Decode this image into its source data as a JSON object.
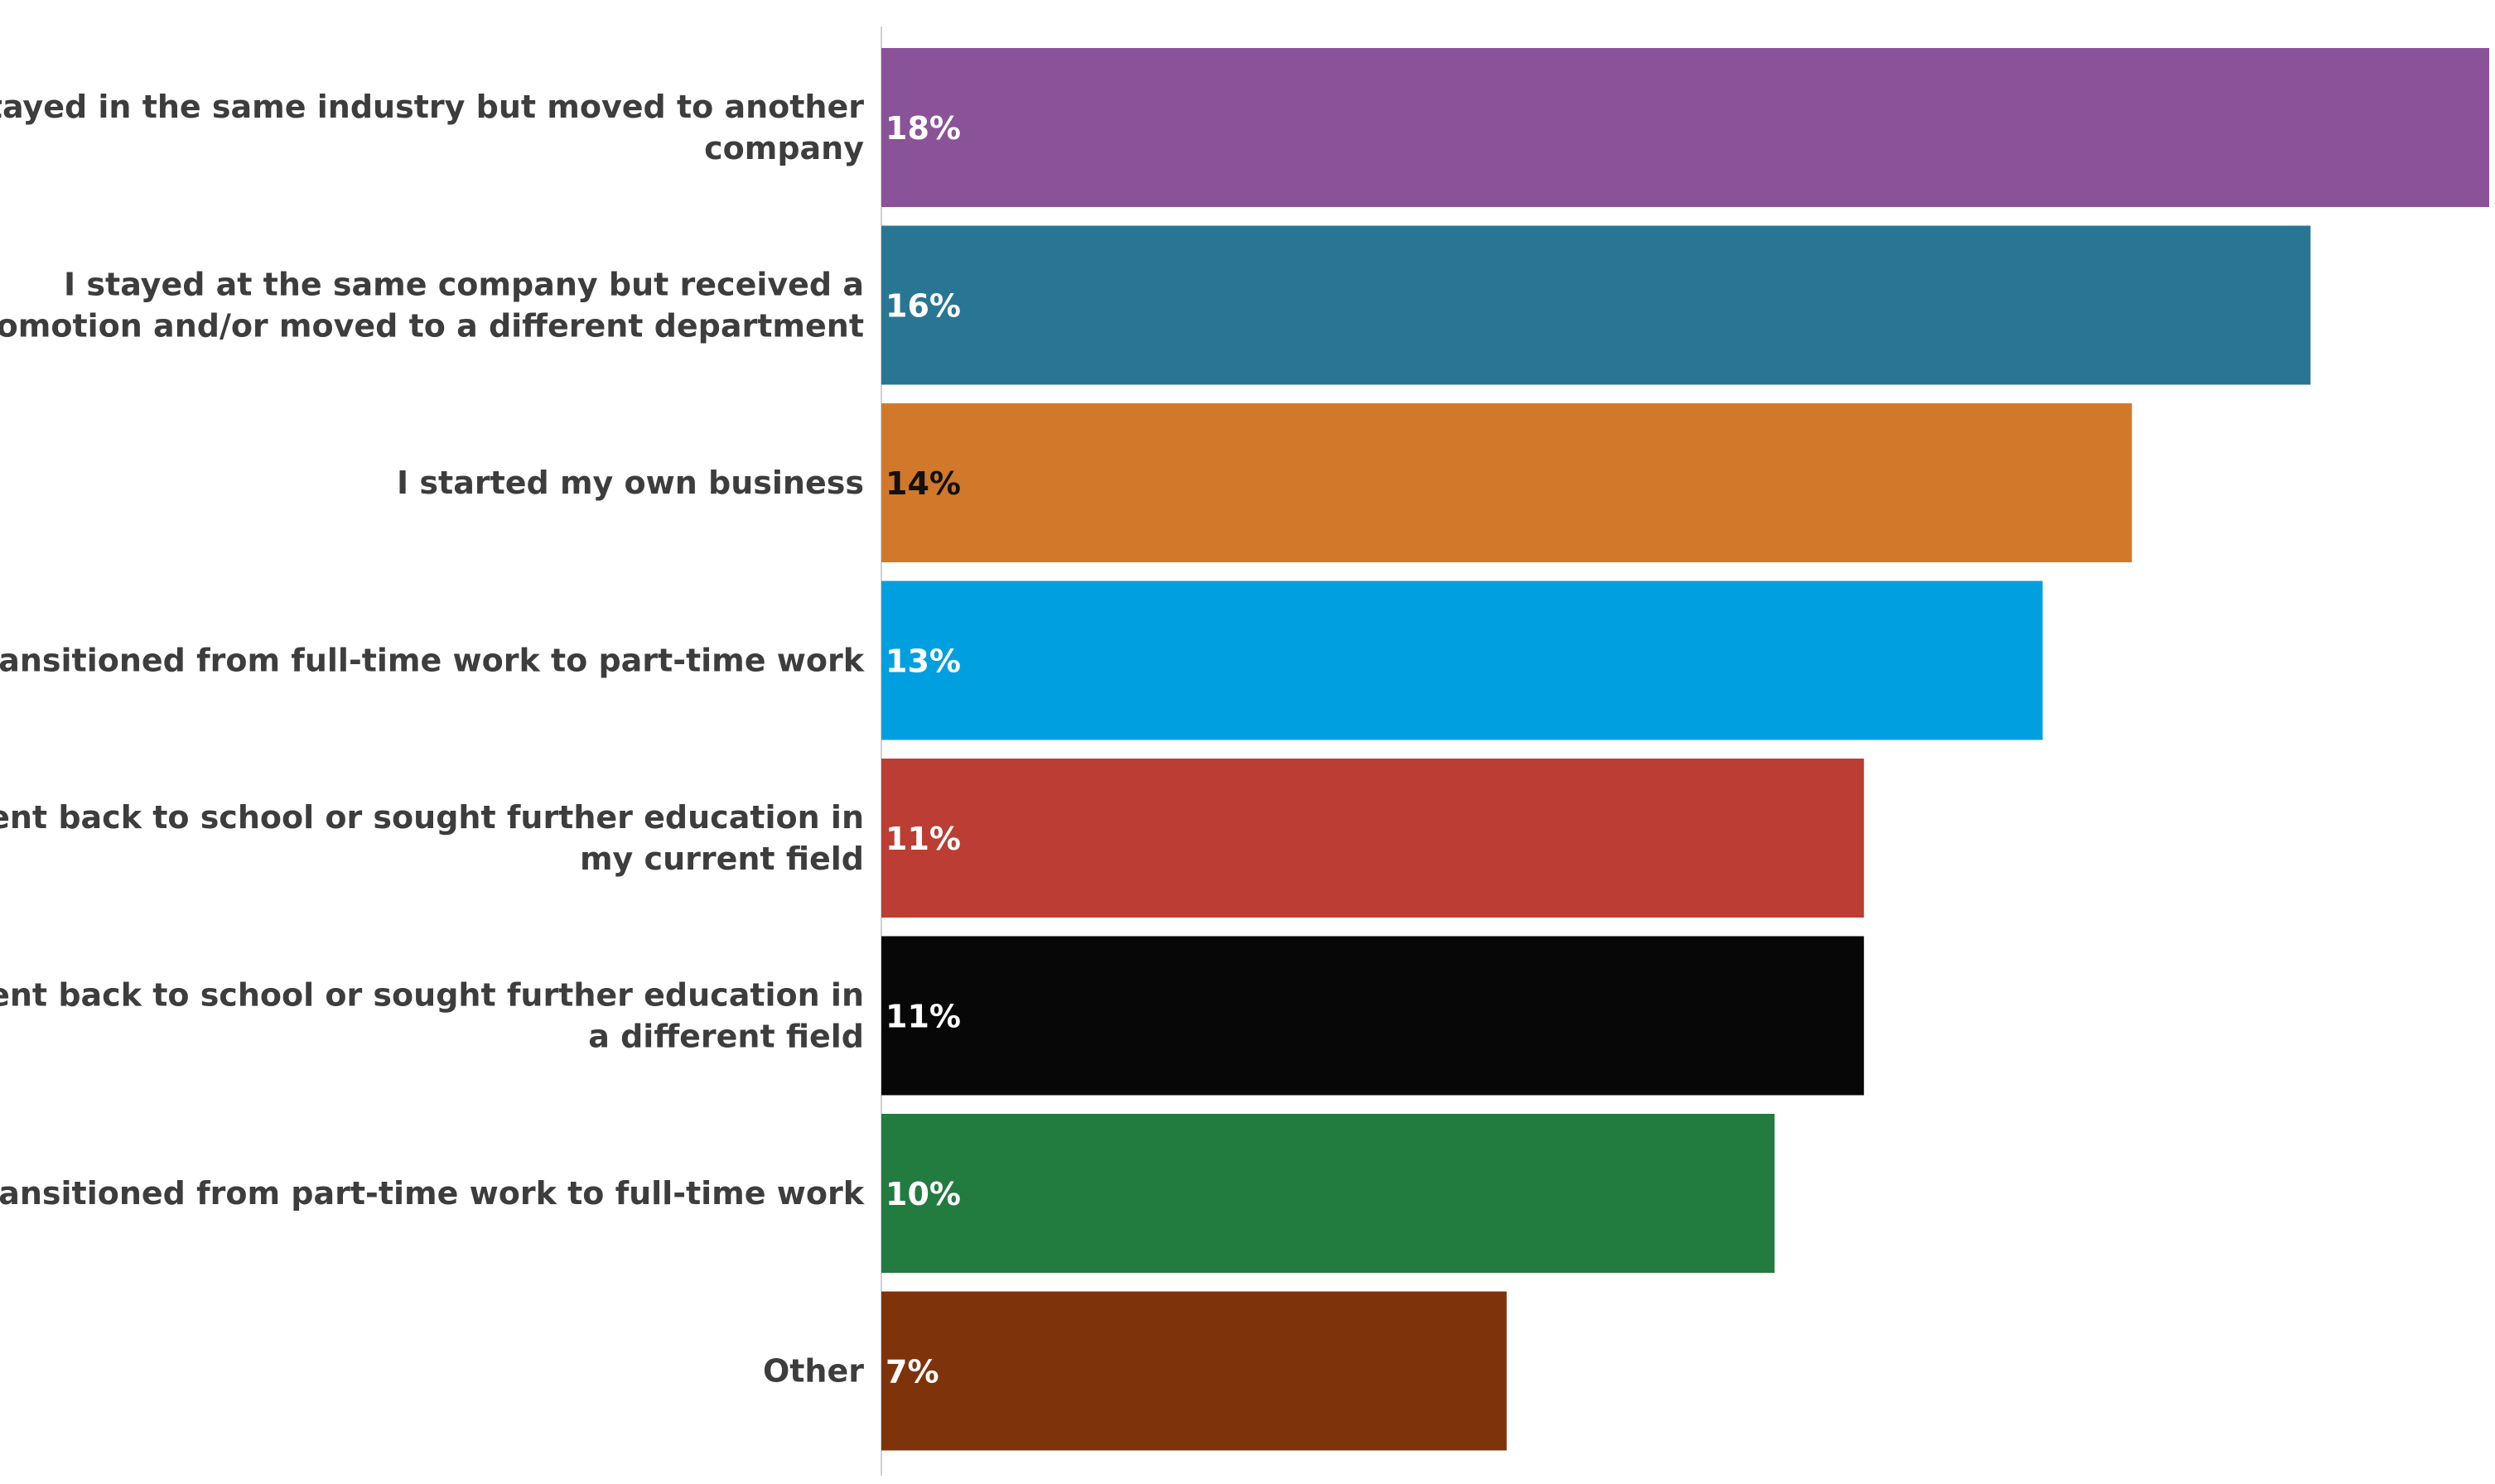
{
  "chart_data": {
    "type": "bar",
    "orientation": "horizontal",
    "categories": [
      [
        "I stayed in the same industry but moved to another",
        "company"
      ],
      [
        "I stayed at the same company but received a",
        "promotion and/or moved to a different department"
      ],
      [
        "I started my own business"
      ],
      [
        "I transitioned from full-time work to part-time work"
      ],
      [
        "I went back to school or sought further education in",
        "my current field"
      ],
      [
        "I went back to school or sought further education in",
        "a different field"
      ],
      [
        "I transitioned from part-time work to full-time work"
      ],
      [
        "Other"
      ]
    ],
    "values": [
      18,
      16,
      14,
      13,
      11,
      11,
      10,
      7
    ],
    "value_labels": [
      "18%",
      "16%",
      "14%",
      "13%",
      "11%",
      "11%",
      "10%",
      "7%"
    ],
    "colors": [
      "#8a5299",
      "#287694",
      "#d2782a",
      "#009fe0",
      "#bb3d33",
      "#070707",
      "#227b3f",
      "#7f330b"
    ],
    "label_colors": [
      "#ffffff",
      "#ffffff",
      "#111111",
      "#ffffff",
      "#ffffff",
      "#ffffff",
      "#ffffff",
      "#ffffff"
    ],
    "xlim": [
      0,
      18
    ],
    "grid": false,
    "legend": "none"
  }
}
